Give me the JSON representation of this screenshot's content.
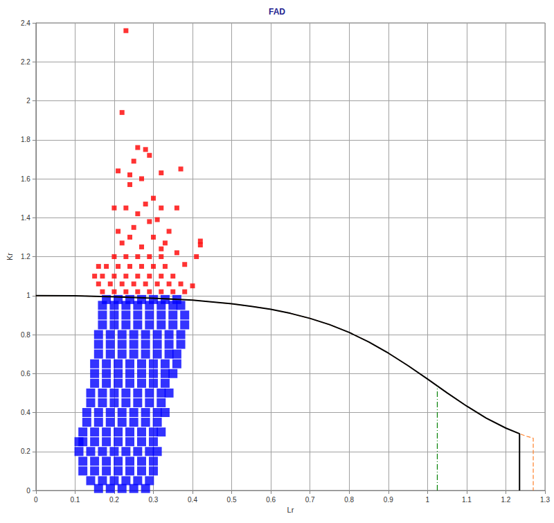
{
  "chart_data": {
    "type": "scatter",
    "title": "FAD",
    "x_label": "Lr",
    "y_label": "Kr",
    "xlim": [
      0,
      1.3
    ],
    "xticks": [
      0,
      0.1,
      0.2,
      0.3,
      0.4,
      0.5,
      0.6,
      0.7,
      0.8,
      0.9,
      1,
      1.1,
      1.2,
      1.3
    ],
    "ylim": [
      0,
      2.4
    ],
    "yticks": [
      0,
      0.2,
      0.4,
      0.6,
      0.8,
      1,
      1.2,
      1.4,
      1.6,
      1.8,
      2,
      2.2,
      2.4
    ],
    "grid": true,
    "series": [
      {
        "type": "scatter",
        "color": "#0000ff",
        "marker": "square",
        "values": [
          [
            0.16,
            0.01
          ],
          [
            0.19,
            0.01
          ],
          [
            0.22,
            0.01
          ],
          [
            0.25,
            0.01
          ],
          [
            0.28,
            0.01
          ],
          [
            0.14,
            0.05
          ],
          [
            0.17,
            0.05
          ],
          [
            0.2,
            0.05
          ],
          [
            0.23,
            0.05
          ],
          [
            0.26,
            0.05
          ],
          [
            0.29,
            0.05
          ],
          [
            0.12,
            0.1
          ],
          [
            0.15,
            0.1
          ],
          [
            0.18,
            0.1
          ],
          [
            0.21,
            0.1
          ],
          [
            0.24,
            0.1
          ],
          [
            0.27,
            0.1
          ],
          [
            0.3,
            0.1
          ],
          [
            0.12,
            0.15
          ],
          [
            0.15,
            0.15
          ],
          [
            0.18,
            0.15
          ],
          [
            0.21,
            0.15
          ],
          [
            0.24,
            0.15
          ],
          [
            0.27,
            0.15
          ],
          [
            0.3,
            0.15
          ],
          [
            0.11,
            0.2
          ],
          [
            0.14,
            0.2
          ],
          [
            0.17,
            0.2
          ],
          [
            0.2,
            0.2
          ],
          [
            0.23,
            0.2
          ],
          [
            0.26,
            0.2
          ],
          [
            0.29,
            0.2
          ],
          [
            0.31,
            0.2
          ],
          [
            0.11,
            0.25
          ],
          [
            0.12,
            0.25
          ],
          [
            0.15,
            0.25
          ],
          [
            0.18,
            0.25
          ],
          [
            0.21,
            0.25
          ],
          [
            0.24,
            0.25
          ],
          [
            0.27,
            0.25
          ],
          [
            0.3,
            0.25
          ],
          [
            0.12,
            0.3
          ],
          [
            0.15,
            0.3
          ],
          [
            0.18,
            0.3
          ],
          [
            0.21,
            0.3
          ],
          [
            0.24,
            0.3
          ],
          [
            0.27,
            0.3
          ],
          [
            0.3,
            0.3
          ],
          [
            0.32,
            0.3
          ],
          [
            0.13,
            0.35
          ],
          [
            0.16,
            0.35
          ],
          [
            0.19,
            0.35
          ],
          [
            0.22,
            0.35
          ],
          [
            0.25,
            0.35
          ],
          [
            0.28,
            0.35
          ],
          [
            0.31,
            0.35
          ],
          [
            0.13,
            0.4
          ],
          [
            0.16,
            0.4
          ],
          [
            0.19,
            0.4
          ],
          [
            0.22,
            0.4
          ],
          [
            0.25,
            0.4
          ],
          [
            0.28,
            0.4
          ],
          [
            0.31,
            0.4
          ],
          [
            0.33,
            0.4
          ],
          [
            0.14,
            0.45
          ],
          [
            0.17,
            0.45
          ],
          [
            0.2,
            0.45
          ],
          [
            0.23,
            0.45
          ],
          [
            0.26,
            0.45
          ],
          [
            0.29,
            0.45
          ],
          [
            0.32,
            0.45
          ],
          [
            0.14,
            0.5
          ],
          [
            0.17,
            0.5
          ],
          [
            0.2,
            0.5
          ],
          [
            0.23,
            0.5
          ],
          [
            0.26,
            0.5
          ],
          [
            0.29,
            0.5
          ],
          [
            0.32,
            0.5
          ],
          [
            0.34,
            0.5
          ],
          [
            0.15,
            0.55
          ],
          [
            0.18,
            0.55
          ],
          [
            0.21,
            0.55
          ],
          [
            0.24,
            0.55
          ],
          [
            0.27,
            0.55
          ],
          [
            0.3,
            0.55
          ],
          [
            0.33,
            0.55
          ],
          [
            0.15,
            0.6
          ],
          [
            0.18,
            0.6
          ],
          [
            0.21,
            0.6
          ],
          [
            0.24,
            0.6
          ],
          [
            0.27,
            0.6
          ],
          [
            0.3,
            0.6
          ],
          [
            0.33,
            0.6
          ],
          [
            0.35,
            0.6
          ],
          [
            0.15,
            0.65
          ],
          [
            0.18,
            0.65
          ],
          [
            0.21,
            0.65
          ],
          [
            0.24,
            0.65
          ],
          [
            0.27,
            0.65
          ],
          [
            0.3,
            0.65
          ],
          [
            0.33,
            0.65
          ],
          [
            0.36,
            0.65
          ],
          [
            0.16,
            0.7
          ],
          [
            0.19,
            0.7
          ],
          [
            0.22,
            0.7
          ],
          [
            0.25,
            0.7
          ],
          [
            0.28,
            0.7
          ],
          [
            0.31,
            0.7
          ],
          [
            0.34,
            0.7
          ],
          [
            0.36,
            0.7
          ],
          [
            0.16,
            0.75
          ],
          [
            0.19,
            0.75
          ],
          [
            0.22,
            0.75
          ],
          [
            0.25,
            0.75
          ],
          [
            0.28,
            0.75
          ],
          [
            0.31,
            0.75
          ],
          [
            0.34,
            0.75
          ],
          [
            0.37,
            0.75
          ],
          [
            0.16,
            0.8
          ],
          [
            0.19,
            0.8
          ],
          [
            0.22,
            0.8
          ],
          [
            0.25,
            0.8
          ],
          [
            0.28,
            0.8
          ],
          [
            0.31,
            0.8
          ],
          [
            0.34,
            0.8
          ],
          [
            0.37,
            0.8
          ],
          [
            0.17,
            0.85
          ],
          [
            0.2,
            0.85
          ],
          [
            0.23,
            0.85
          ],
          [
            0.26,
            0.85
          ],
          [
            0.29,
            0.85
          ],
          [
            0.32,
            0.85
          ],
          [
            0.35,
            0.85
          ],
          [
            0.38,
            0.85
          ],
          [
            0.17,
            0.9
          ],
          [
            0.2,
            0.9
          ],
          [
            0.23,
            0.9
          ],
          [
            0.26,
            0.9
          ],
          [
            0.29,
            0.9
          ],
          [
            0.32,
            0.9
          ],
          [
            0.35,
            0.9
          ],
          [
            0.38,
            0.9
          ],
          [
            0.17,
            0.95
          ],
          [
            0.2,
            0.95
          ],
          [
            0.23,
            0.95
          ],
          [
            0.26,
            0.95
          ],
          [
            0.29,
            0.95
          ],
          [
            0.32,
            0.95
          ],
          [
            0.35,
            0.95
          ],
          [
            0.37,
            0.95
          ],
          [
            0.18,
            0.98
          ],
          [
            0.21,
            0.98
          ],
          [
            0.24,
            0.98
          ],
          [
            0.27,
            0.98
          ],
          [
            0.3,
            0.98
          ],
          [
            0.33,
            0.98
          ],
          [
            0.36,
            0.98
          ]
        ]
      },
      {
        "type": "scatter",
        "color": "#ff0000",
        "marker": "square",
        "values": [
          [
            0.17,
            1.02
          ],
          [
            0.2,
            1.02
          ],
          [
            0.23,
            1.02
          ],
          [
            0.26,
            1.02
          ],
          [
            0.29,
            1.02
          ],
          [
            0.32,
            1.02
          ],
          [
            0.35,
            1.02
          ],
          [
            0.16,
            1.06
          ],
          [
            0.19,
            1.06
          ],
          [
            0.22,
            1.06
          ],
          [
            0.25,
            1.06
          ],
          [
            0.28,
            1.06
          ],
          [
            0.31,
            1.06
          ],
          [
            0.34,
            1.06
          ],
          [
            0.37,
            1.06
          ],
          [
            0.17,
            1.1
          ],
          [
            0.2,
            1.1
          ],
          [
            0.23,
            1.1
          ],
          [
            0.26,
            1.1
          ],
          [
            0.29,
            1.1
          ],
          [
            0.32,
            1.1
          ],
          [
            0.35,
            1.1
          ],
          [
            0.18,
            1.15
          ],
          [
            0.21,
            1.15
          ],
          [
            0.24,
            1.15
          ],
          [
            0.27,
            1.15
          ],
          [
            0.3,
            1.15
          ],
          [
            0.33,
            1.15
          ],
          [
            0.2,
            1.2
          ],
          [
            0.23,
            1.2
          ],
          [
            0.26,
            1.2
          ],
          [
            0.29,
            1.2
          ],
          [
            0.32,
            1.2
          ],
          [
            0.15,
            1.1
          ],
          [
            0.16,
            1.15
          ],
          [
            0.38,
            1.02
          ],
          [
            0.4,
            1.05
          ],
          [
            0.42,
            1.28
          ],
          [
            0.42,
            1.26
          ],
          [
            0.41,
            1.2
          ],
          [
            0.38,
            1.16
          ],
          [
            0.36,
            1.22
          ],
          [
            0.22,
            1.27
          ],
          [
            0.24,
            1.3
          ],
          [
            0.27,
            1.25
          ],
          [
            0.3,
            1.3
          ],
          [
            0.33,
            1.27
          ],
          [
            0.25,
            1.35
          ],
          [
            0.29,
            1.38
          ],
          [
            0.21,
            1.33
          ],
          [
            0.26,
            1.42
          ],
          [
            0.31,
            1.39
          ],
          [
            0.36,
            1.45
          ],
          [
            0.23,
            1.45
          ],
          [
            0.28,
            1.47
          ],
          [
            0.3,
            1.5
          ],
          [
            0.32,
            1.45
          ],
          [
            0.2,
            1.45
          ],
          [
            0.27,
            1.6
          ],
          [
            0.24,
            1.57
          ],
          [
            0.26,
            1.76
          ],
          [
            0.28,
            1.75
          ],
          [
            0.29,
            1.72
          ],
          [
            0.25,
            1.69
          ],
          [
            0.32,
            1.63
          ],
          [
            0.37,
            1.65
          ],
          [
            0.21,
            1.64
          ],
          [
            0.24,
            1.62
          ],
          [
            0.22,
            1.94
          ],
          [
            0.23,
            2.36
          ],
          [
            0.32,
            1.24
          ],
          [
            0.34,
            1.33
          ]
        ]
      },
      {
        "type": "line",
        "color": "#ff7f27",
        "line_style": "dashed",
        "values": [
          [
            0,
            1
          ],
          [
            0.1,
            0.999
          ],
          [
            0.2,
            0.994
          ],
          [
            0.3,
            0.987
          ],
          [
            0.4,
            0.977
          ],
          [
            0.5,
            0.958
          ],
          [
            0.55,
            0.945
          ],
          [
            0.6,
            0.93
          ],
          [
            0.65,
            0.909
          ],
          [
            0.7,
            0.883
          ],
          [
            0.75,
            0.851
          ],
          [
            0.8,
            0.811
          ],
          [
            0.85,
            0.762
          ],
          [
            0.9,
            0.705
          ],
          [
            0.95,
            0.641
          ],
          [
            1,
            0.572
          ],
          [
            1.05,
            0.501
          ],
          [
            1.1,
            0.433
          ],
          [
            1.15,
            0.371
          ],
          [
            1.2,
            0.32
          ],
          [
            1.235,
            0.291
          ],
          [
            1.25,
            0.28
          ],
          [
            1.27,
            0.268
          ],
          [
            1.27,
            0
          ]
        ]
      },
      {
        "type": "line",
        "color": "#000000",
        "line_style": "solid",
        "values": [
          [
            0,
            1
          ],
          [
            0.1,
            0.999
          ],
          [
            0.2,
            0.994
          ],
          [
            0.3,
            0.987
          ],
          [
            0.4,
            0.977
          ],
          [
            0.5,
            0.958
          ],
          [
            0.55,
            0.945
          ],
          [
            0.6,
            0.93
          ],
          [
            0.65,
            0.909
          ],
          [
            0.7,
            0.883
          ],
          [
            0.75,
            0.851
          ],
          [
            0.8,
            0.811
          ],
          [
            0.85,
            0.762
          ],
          [
            0.9,
            0.705
          ],
          [
            0.95,
            0.641
          ],
          [
            1,
            0.572
          ],
          [
            1.05,
            0.501
          ],
          [
            1.1,
            0.433
          ],
          [
            1.15,
            0.371
          ],
          [
            1.2,
            0.32
          ],
          [
            1.235,
            0.291
          ],
          [
            1.235,
            0
          ]
        ]
      },
      {
        "type": "line",
        "color": "#008000",
        "line_style": "dashdot",
        "values": [
          [
            1.025,
            0
          ],
          [
            1.025,
            0.535
          ]
        ]
      }
    ]
  }
}
